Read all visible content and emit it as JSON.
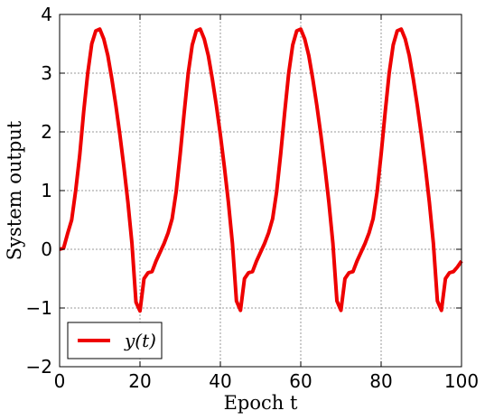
{
  "chart_data": {
    "type": "line",
    "title": "",
    "xlabel": "Epoch t",
    "ylabel": "System output",
    "xlim": [
      0,
      100
    ],
    "ylim": [
      -2,
      4
    ],
    "xticks": [
      0,
      20,
      40,
      60,
      80,
      100
    ],
    "xtick_labels": [
      "0",
      "20",
      "40",
      "60",
      "80",
      "100"
    ],
    "yticks": [
      -2,
      -1,
      0,
      1,
      2,
      3,
      4
    ],
    "ytick_labels": [
      "−2",
      "−1",
      "0",
      "1",
      "2",
      "3",
      "4"
    ],
    "grid": true,
    "legend_position": "lower-left",
    "series": [
      {
        "name": "y(t)",
        "color": "#ee0000",
        "x": [
          0,
          1,
          2,
          3,
          4,
          5,
          6,
          7,
          8,
          9,
          10,
          11,
          12,
          13,
          14,
          15,
          16,
          17,
          18,
          19,
          20,
          21,
          22,
          23,
          24,
          25,
          26,
          27,
          28,
          29,
          30,
          31,
          32,
          33,
          34,
          35,
          36,
          37,
          38,
          39,
          40,
          41,
          42,
          43,
          44,
          45,
          46,
          47,
          48,
          49,
          50,
          51,
          52,
          53,
          54,
          55,
          56,
          57,
          58,
          59,
          60,
          61,
          62,
          63,
          64,
          65,
          66,
          67,
          68,
          69,
          70,
          71,
          72,
          73,
          74,
          75,
          76,
          77,
          78,
          79,
          80,
          81,
          82,
          83,
          84,
          85,
          86,
          87,
          88,
          89,
          90,
          91,
          92,
          93,
          94,
          95,
          96,
          97,
          98,
          99,
          100
        ],
        "y": [
          0.0,
          0.02,
          0.27,
          0.5,
          1.0,
          1.6,
          2.35,
          3.0,
          3.5,
          3.72,
          3.75,
          3.58,
          3.3,
          2.9,
          2.45,
          1.95,
          1.4,
          0.8,
          0.1,
          -0.9,
          -1.05,
          -0.5,
          -0.4,
          -0.38,
          -0.2,
          -0.05,
          0.1,
          0.28,
          0.52,
          0.98,
          1.62,
          2.33,
          3.0,
          3.48,
          3.72,
          3.75,
          3.58,
          3.3,
          2.9,
          2.45,
          1.95,
          1.4,
          0.8,
          0.1,
          -0.88,
          -1.04,
          -0.5,
          -0.4,
          -0.38,
          -0.2,
          -0.05,
          0.1,
          0.28,
          0.52,
          0.98,
          1.62,
          2.33,
          3.0,
          3.48,
          3.72,
          3.75,
          3.58,
          3.3,
          2.9,
          2.45,
          1.95,
          1.4,
          0.8,
          0.1,
          -0.88,
          -1.04,
          -0.5,
          -0.4,
          -0.38,
          -0.2,
          -0.05,
          0.1,
          0.28,
          0.52,
          0.98,
          1.62,
          2.33,
          3.0,
          3.48,
          3.72,
          3.75,
          3.58,
          3.3,
          2.9,
          2.45,
          1.95,
          1.4,
          0.8,
          0.1,
          -0.88,
          -1.04,
          -0.5,
          -0.4,
          -0.38,
          -0.3,
          -0.2
        ]
      }
    ]
  }
}
